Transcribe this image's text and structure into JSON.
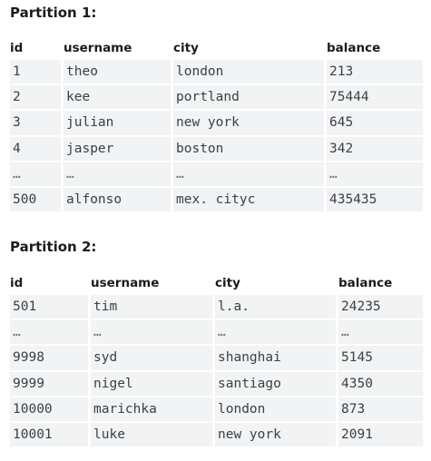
{
  "partitions": [
    {
      "title": "Partition 1:",
      "columns": [
        "id",
        "username",
        "city",
        "balance"
      ],
      "rows": [
        [
          "1",
          "theo",
          "london",
          "213"
        ],
        [
          "2",
          "kee",
          "portland",
          "75444"
        ],
        [
          "3",
          "julian",
          "new york",
          "645"
        ],
        [
          "4",
          "jasper",
          "boston",
          "342"
        ],
        [
          "…",
          "…",
          "…",
          "…"
        ],
        [
          "500",
          "alfonso",
          "mex. cityc",
          "435435"
        ]
      ]
    },
    {
      "title": "Partition 2:",
      "columns": [
        "id",
        "username",
        "city",
        "balance"
      ],
      "rows": [
        [
          "501",
          "tim",
          "l.a.",
          "24235"
        ],
        [
          "…",
          "…",
          "…",
          "…"
        ],
        [
          "9998",
          "syd",
          "shanghai",
          "5145"
        ],
        [
          "9999",
          "nigel",
          "santiago",
          "4350"
        ],
        [
          "10000",
          "marichka",
          "london",
          "873"
        ],
        [
          "10001",
          "luke",
          "new york",
          "2091"
        ]
      ]
    }
  ]
}
